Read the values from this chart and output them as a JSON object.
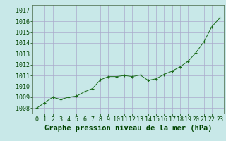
{
  "x": [
    0,
    1,
    2,
    3,
    4,
    5,
    6,
    7,
    8,
    9,
    10,
    11,
    12,
    13,
    14,
    15,
    16,
    17,
    18,
    19,
    20,
    21,
    22,
    23
  ],
  "y": [
    1008.0,
    1008.5,
    1009.0,
    1008.8,
    1009.0,
    1009.1,
    1009.5,
    1009.8,
    1010.6,
    1010.9,
    1010.9,
    1011.0,
    1010.9,
    1011.05,
    1010.55,
    1010.7,
    1011.1,
    1011.4,
    1011.8,
    1012.3,
    1013.1,
    1014.1,
    1015.5,
    1016.3
  ],
  "line_color": "#1a6b1a",
  "marker": "+",
  "bg_color": "#c8e8e8",
  "grid_color": "#aaaacc",
  "xlabel": "Graphe pression niveau de la mer (hPa)",
  "xlabel_color": "#004400",
  "xlabel_fontsize": 7.5,
  "tick_fontsize": 6,
  "tick_color": "#004400",
  "ylim": [
    1007.5,
    1017.5
  ],
  "yticks": [
    1008,
    1009,
    1010,
    1011,
    1012,
    1013,
    1014,
    1015,
    1016,
    1017
  ],
  "xlim": [
    -0.5,
    23.5
  ],
  "xticks": [
    0,
    1,
    2,
    3,
    4,
    5,
    6,
    7,
    8,
    9,
    10,
    11,
    12,
    13,
    14,
    15,
    16,
    17,
    18,
    19,
    20,
    21,
    22,
    23
  ]
}
